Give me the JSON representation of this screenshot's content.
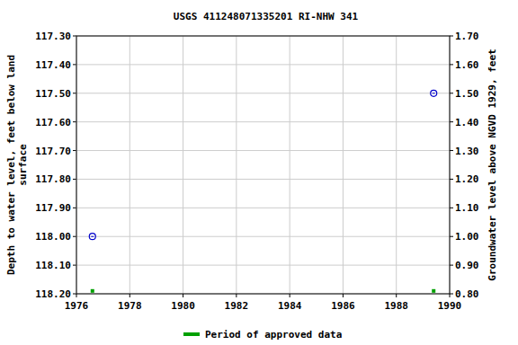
{
  "chart_data": {
    "type": "scatter",
    "title": "USGS 411248071335201 RI-NHW  341",
    "ylabel": [
      "Depth to water level, feet below land",
      "surface"
    ],
    "y2label": "Groundwater level above NGVD 1929, feet",
    "xlim": [
      1976,
      1990
    ],
    "xticks": [
      1976,
      1978,
      1980,
      1982,
      1984,
      1986,
      1988,
      1990
    ],
    "ylim": [
      117.3,
      118.2
    ],
    "yticks": [
      {
        "value": 117.3,
        "label": "117.30"
      },
      {
        "value": 117.4,
        "label": "117.40"
      },
      {
        "value": 117.5,
        "label": "117.50"
      },
      {
        "value": 117.6,
        "label": "117.60"
      },
      {
        "value": 117.7,
        "label": "117.70"
      },
      {
        "value": 117.8,
        "label": "117.80"
      },
      {
        "value": 117.9,
        "label": "117.90"
      },
      {
        "value": 118.0,
        "label": "118.00"
      },
      {
        "value": 118.1,
        "label": "118.10"
      },
      {
        "value": 118.2,
        "label": "118.20"
      }
    ],
    "y2lim": [
      1.7,
      0.8
    ],
    "y2ticks": [
      {
        "value": 1.7,
        "label": "1.70"
      },
      {
        "value": 1.6,
        "label": "1.60"
      },
      {
        "value": 1.5,
        "label": "1.50"
      },
      {
        "value": 1.4,
        "label": "1.40"
      },
      {
        "value": 1.3,
        "label": "1.30"
      },
      {
        "value": 1.2,
        "label": "1.20"
      },
      {
        "value": 1.1,
        "label": "1.10"
      },
      {
        "value": 1.0,
        "label": "1.00"
      },
      {
        "value": 0.9,
        "label": "0.90"
      },
      {
        "value": 0.8,
        "label": "0.80"
      }
    ],
    "grid": true,
    "legend": "bottom",
    "series": [
      {
        "x": [
          1976.6,
          1989.4
        ],
        "values": [
          118.0,
          117.5
        ],
        "color": "#0000cc",
        "marker": "circle"
      },
      {
        "name": "Period of approved data",
        "x": [
          1976.6,
          1989.4
        ],
        "values": [
          118.19,
          118.19
        ],
        "color": "#00a000",
        "marker": "square"
      }
    ]
  }
}
